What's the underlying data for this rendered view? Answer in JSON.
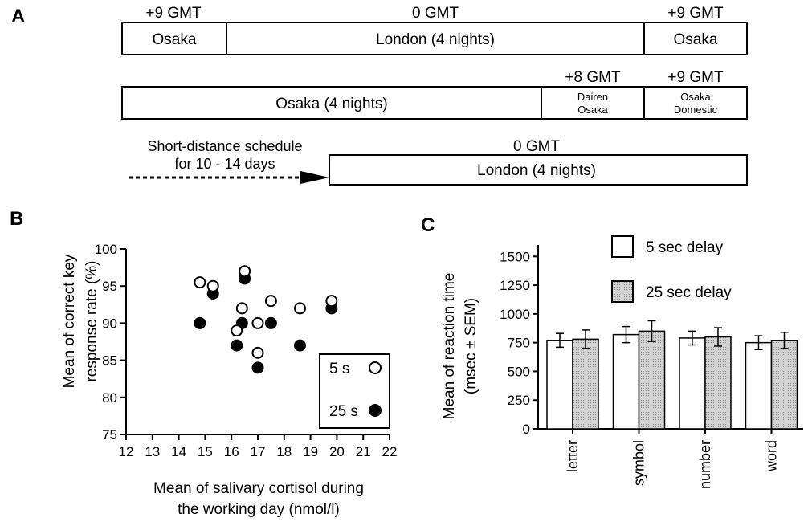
{
  "panel_a": {
    "letter": "A",
    "row1": {
      "zones": [
        "+9 GMT",
        "0 GMT",
        "+9 GMT"
      ],
      "cells": [
        "Osaka",
        "London (4 nights)",
        "Osaka"
      ]
    },
    "row2": {
      "zones": [
        "+8 GMT",
        "+9 GMT"
      ],
      "cells": [
        "Osaka (4 nights)"
      ],
      "small_cells": [
        [
          "Dairen",
          "Osaka"
        ],
        [
          "Osaka",
          "Domestic"
        ]
      ]
    },
    "row3": {
      "pre_label_1": "Short-distance schedule",
      "pre_label_2": "for 10 - 14 days",
      "zone": "0 GMT",
      "cell": "London  (4 nights)"
    }
  },
  "panel_b": {
    "letter": "B",
    "legend": [
      "5 s",
      "25 s"
    ]
  },
  "panel_c": {
    "letter": "C",
    "legend": [
      "5 sec delay",
      "25 sec delay"
    ]
  },
  "chart_data": [
    {
      "type": "scatter",
      "panel": "B",
      "xlabel": [
        "Mean of salivary cortisol during",
        "the working day  (nmol/l)"
      ],
      "ylabel": [
        "Mean of correct key",
        "response rate (%)"
      ],
      "xlim": [
        12,
        22
      ],
      "ylim": [
        75,
        100
      ],
      "xticks": [
        12,
        13,
        14,
        15,
        16,
        17,
        18,
        19,
        20,
        21,
        22
      ],
      "yticks": [
        75,
        80,
        85,
        90,
        95,
        100
      ],
      "legend_position": "bottom-right",
      "series": [
        {
          "name": "5 s",
          "marker": "open-circle",
          "points": [
            [
              14.8,
              95.5
            ],
            [
              15.3,
              95
            ],
            [
              16.2,
              89
            ],
            [
              16.4,
              92
            ],
            [
              16.5,
              97
            ],
            [
              17.0,
              90
            ],
            [
              17.0,
              86
            ],
            [
              17.5,
              93
            ],
            [
              18.6,
              92
            ],
            [
              19.8,
              93
            ]
          ]
        },
        {
          "name": "25 s",
          "marker": "filled-circle",
          "points": [
            [
              14.8,
              90
            ],
            [
              15.3,
              94
            ],
            [
              16.2,
              87
            ],
            [
              16.4,
              90
            ],
            [
              16.5,
              96
            ],
            [
              17.0,
              84
            ],
            [
              17.5,
              90
            ],
            [
              18.6,
              87
            ],
            [
              19.8,
              92
            ]
          ]
        }
      ]
    },
    {
      "type": "bar",
      "panel": "C",
      "ylabel": [
        "Mean of reaction time",
        "(msec ± SEM)"
      ],
      "categories": [
        "letter",
        "symbol",
        "number",
        "word"
      ],
      "ylim": [
        0,
        1600
      ],
      "yticks": [
        0,
        250,
        500,
        750,
        1000,
        1250,
        1500
      ],
      "legend_position": "top",
      "series": [
        {
          "name": "5 sec delay",
          "color": "#ffffff",
          "values": [
            770,
            820,
            790,
            750
          ],
          "errors": [
            60,
            70,
            60,
            60
          ]
        },
        {
          "name": "25 sec delay",
          "color": "#c8c8c8",
          "values": [
            780,
            850,
            800,
            770
          ],
          "errors": [
            80,
            90,
            80,
            70
          ]
        }
      ]
    }
  ]
}
